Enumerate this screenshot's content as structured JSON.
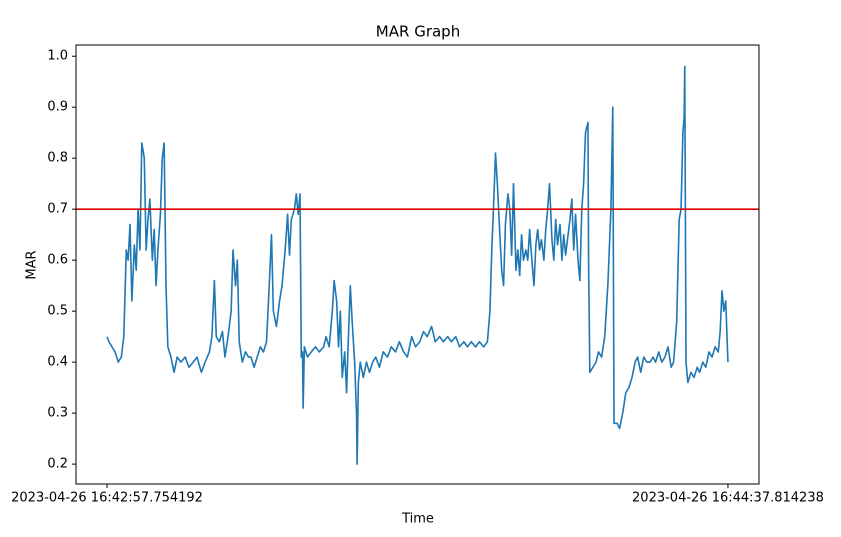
{
  "chart_data": {
    "type": "line",
    "title": "MAR Graph",
    "x_label": "Time",
    "y_label": "MAR",
    "x": [
      0,
      0.3,
      0.8,
      1.3,
      1.8,
      2.3,
      2.7,
      3.1,
      3.4,
      3.7,
      4.0,
      4.4,
      4.7,
      5.0,
      5.3,
      5.6,
      6.0,
      6.3,
      6.6,
      6.9,
      7.3,
      7.6,
      7.9,
      8.2,
      8.6,
      8.9,
      9.2,
      9.5,
      9.8,
      10.3,
      10.8,
      11.3,
      11.9,
      12.6,
      13.2,
      13.9,
      14.5,
      15.2,
      15.8,
      16.5,
      16.9,
      17.3,
      17.6,
      18.1,
      18.6,
      19.0,
      19.5,
      20.0,
      20.3,
      20.7,
      21.0,
      21.3,
      21.8,
      22.3,
      22.8,
      23.2,
      23.7,
      24.2,
      24.7,
      25.2,
      25.7,
      26.1,
      26.5,
      26.8,
      27.3,
      27.8,
      28.2,
      28.7,
      29.1,
      29.4,
      29.7,
      30.2,
      30.5,
      30.8,
      31.1,
      31.3,
      31.5,
      31.6,
      31.8,
      32.3,
      32.9,
      33.6,
      34.2,
      34.9,
      35.3,
      35.8,
      36.3,
      36.6,
      37.0,
      37.3,
      37.6,
      37.9,
      38.3,
      38.6,
      38.9,
      39.2,
      39.5,
      39.9,
      40.2,
      40.3,
      40.5,
      40.8,
      41.3,
      41.8,
      42.3,
      42.8,
      43.3,
      43.9,
      44.5,
      45.2,
      45.8,
      46.5,
      47.1,
      47.8,
      48.4,
      49.1,
      49.7,
      50.4,
      51.0,
      51.6,
      52.3,
      52.9,
      53.6,
      54.2,
      54.9,
      55.5,
      56.2,
      56.8,
      57.5,
      58.1,
      58.7,
      59.4,
      60.0,
      60.7,
      61.3,
      61.7,
      62.0,
      62.3,
      62.6,
      62.9,
      63.3,
      63.6,
      63.9,
      64.2,
      64.6,
      64.9,
      65.2,
      65.5,
      65.9,
      66.2,
      66.5,
      66.8,
      67.1,
      67.5,
      67.8,
      68.1,
      68.4,
      68.8,
      69.1,
      69.4,
      69.7,
      70.0,
      70.4,
      70.7,
      71.0,
      71.3,
      71.7,
      72.0,
      72.3,
      72.6,
      73.0,
      73.3,
      73.6,
      73.9,
      74.2,
      74.6,
      74.9,
      75.2,
      75.5,
      75.9,
      76.2,
      76.5,
      76.8,
      77.1,
      77.5,
      77.6,
      77.8,
      78.3,
      78.8,
      79.2,
      79.7,
      80.2,
      80.7,
      81.2,
      81.5,
      81.7,
      82.2,
      82.6,
      83.1,
      83.6,
      84.1,
      84.6,
      85.1,
      85.5,
      86.0,
      86.5,
      87.0,
      87.5,
      88.0,
      88.4,
      88.9,
      89.4,
      89.9,
      90.4,
      90.9,
      91.3,
      91.8,
      92.2,
      92.5,
      92.8,
      93.0,
      93.1,
      93.3,
      93.6,
      94.1,
      94.6,
      95.1,
      95.5,
      96.0,
      96.5,
      97.0,
      97.5,
      98.0,
      98.5,
      98.8,
      99.1,
      99.4,
      99.7,
      100.06
    ],
    "series": [
      {
        "color": "#1f77b4",
        "values": [
          0.45,
          0.44,
          0.43,
          0.42,
          0.4,
          0.41,
          0.45,
          0.62,
          0.6,
          0.67,
          0.52,
          0.63,
          0.58,
          0.7,
          0.62,
          0.83,
          0.8,
          0.62,
          0.68,
          0.72,
          0.6,
          0.66,
          0.55,
          0.62,
          0.69,
          0.8,
          0.83,
          0.55,
          0.43,
          0.41,
          0.38,
          0.41,
          0.4,
          0.41,
          0.39,
          0.4,
          0.41,
          0.38,
          0.4,
          0.42,
          0.45,
          0.56,
          0.45,
          0.44,
          0.46,
          0.41,
          0.45,
          0.5,
          0.62,
          0.55,
          0.6,
          0.44,
          0.4,
          0.42,
          0.41,
          0.41,
          0.39,
          0.41,
          0.43,
          0.42,
          0.44,
          0.54,
          0.65,
          0.5,
          0.47,
          0.52,
          0.55,
          0.62,
          0.69,
          0.61,
          0.68,
          0.7,
          0.73,
          0.69,
          0.73,
          0.41,
          0.42,
          0.31,
          0.43,
          0.41,
          0.42,
          0.43,
          0.42,
          0.43,
          0.45,
          0.43,
          0.5,
          0.56,
          0.52,
          0.43,
          0.5,
          0.37,
          0.42,
          0.34,
          0.45,
          0.55,
          0.48,
          0.4,
          0.3,
          0.2,
          0.36,
          0.4,
          0.37,
          0.4,
          0.38,
          0.4,
          0.41,
          0.39,
          0.42,
          0.41,
          0.43,
          0.42,
          0.44,
          0.42,
          0.41,
          0.45,
          0.43,
          0.44,
          0.46,
          0.45,
          0.47,
          0.44,
          0.45,
          0.44,
          0.45,
          0.44,
          0.45,
          0.43,
          0.44,
          0.43,
          0.44,
          0.43,
          0.44,
          0.43,
          0.44,
          0.5,
          0.62,
          0.71,
          0.81,
          0.75,
          0.65,
          0.58,
          0.55,
          0.67,
          0.73,
          0.7,
          0.61,
          0.75,
          0.58,
          0.62,
          0.57,
          0.65,
          0.6,
          0.62,
          0.6,
          0.66,
          0.61,
          0.55,
          0.63,
          0.66,
          0.62,
          0.64,
          0.6,
          0.66,
          0.7,
          0.75,
          0.64,
          0.6,
          0.68,
          0.63,
          0.67,
          0.6,
          0.65,
          0.61,
          0.64,
          0.68,
          0.72,
          0.62,
          0.69,
          0.6,
          0.56,
          0.7,
          0.75,
          0.85,
          0.87,
          0.6,
          0.38,
          0.39,
          0.4,
          0.42,
          0.41,
          0.45,
          0.55,
          0.7,
          0.9,
          0.28,
          0.28,
          0.27,
          0.3,
          0.34,
          0.35,
          0.37,
          0.4,
          0.41,
          0.38,
          0.41,
          0.4,
          0.4,
          0.41,
          0.4,
          0.42,
          0.4,
          0.41,
          0.43,
          0.39,
          0.4,
          0.48,
          0.68,
          0.7,
          0.85,
          0.88,
          0.98,
          0.4,
          0.36,
          0.38,
          0.37,
          0.39,
          0.38,
          0.4,
          0.39,
          0.42,
          0.41,
          0.43,
          0.42,
          0.46,
          0.54,
          0.5,
          0.52,
          0.4
        ]
      }
    ],
    "threshold": 0.7,
    "threshold_color": "#e00000",
    "xlim": [
      -5.003,
      105.063
    ],
    "xticks": [
      {
        "value": 0,
        "label": "2023-04-26 16:42:57.754192"
      },
      {
        "value": 100.06,
        "label": "2023-04-26 16:44:37.814238"
      }
    ],
    "ylim": [
      0.161,
      1.022
    ],
    "yticks": [
      0.2,
      0.3,
      0.4,
      0.5,
      0.6,
      0.7,
      0.8,
      0.9,
      {
        "value": 1,
        "label": "1.0"
      }
    ]
  }
}
